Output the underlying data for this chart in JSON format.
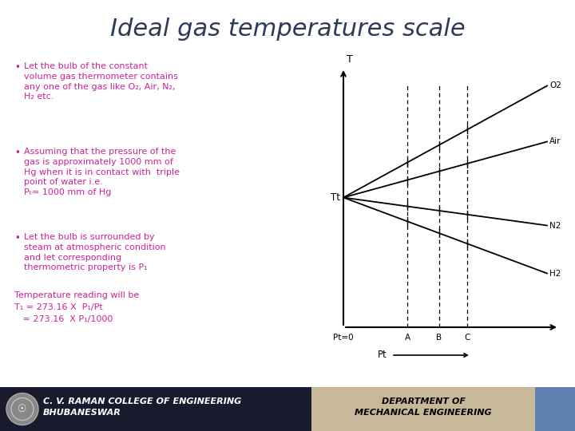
{
  "title": "Ideal gas temperatures scale",
  "title_color": "#2E3A59",
  "title_fontsize": 22,
  "bg_color": "#FFFFFF",
  "bullet_color": "#CC2299",
  "bullet_points": [
    "Let the bulb of the constant\nvolume gas thermometer contains\nany one of the gas like O₂, Air, N₂,\nH₂ etc.",
    "Assuming that the pressure of the\ngas is approximately 1000 mm of\nHg when it is in contact with  triple\npoint of water i.e.\nPₜ= 1000 mm of Hg",
    "Let the bulb is surrounded by\nsteam at atmospheric condition\nand let corresponding\nthermometric property is P₁"
  ],
  "formula_line0": "Temperature reading will be",
  "formula_line1": "T₁ = 273.16 X  P₁/Pt",
  "formula_line2": "   = 273.16  X P₁/1000",
  "footer_left_bg": "#1A1A2E",
  "footer_right_bg": "#C8B89A",
  "footer_right_accent": "#6080B0",
  "footer_left_text": "C. V. RAMAN COLLEGE OF ENGINEERING\nBHUBANESWAR",
  "footer_right_text": "DEPARTMENT OF\nMECHANICAL ENGINEERING",
  "graph_labels": [
    "O2",
    "Air",
    "N2",
    "H2"
  ],
  "graph_x_labels": [
    "Pt=0",
    "A",
    "B",
    "C"
  ],
  "graph_tt_label": "Tt",
  "graph_t_label": "T",
  "graph_pt_label": "Pt"
}
